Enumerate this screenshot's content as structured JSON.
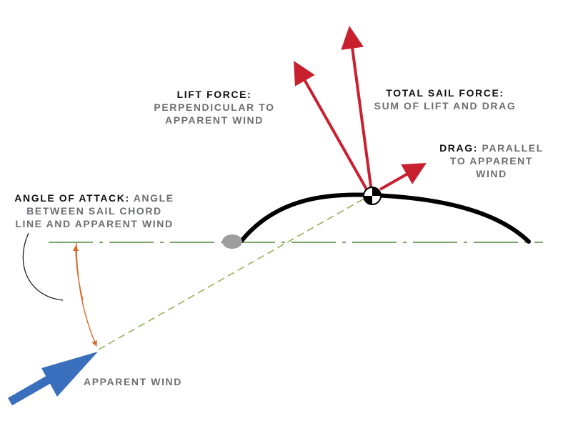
{
  "lift": {
    "heading": "LIFT FORCE:",
    "line1": "PERPENDICULAR TO",
    "line2": "APPARENT WIND"
  },
  "total": {
    "heading": "TOTAL SAIL FORCE:",
    "line1": "SUM OF LIFT AND DRAG"
  },
  "drag": {
    "heading": "DRAG:",
    "line1_rest": " PARALLEL",
    "line2": "TO APPARENT",
    "line3": "WIND"
  },
  "angle": {
    "heading": "ANGLE OF ATTACK:",
    "line1_rest": " ANGLE",
    "line2": "BETWEEN SAIL CHORD",
    "line3": "LINE AND APPARENT WIND"
  },
  "wind": {
    "label": "APPARENT WIND"
  },
  "colors": {
    "force_arrow": "#c8202f",
    "wind_arrow": "#3a6fbd",
    "chord_line": "#4f8a3a",
    "wind_line": "#8fae4a",
    "angle_arc": "#d96a2b",
    "sail": "#000000",
    "mast": "#9d9d9d"
  },
  "icons": {
    "center_of_effort": "center-of-effort-icon",
    "mast": "mast-icon"
  }
}
